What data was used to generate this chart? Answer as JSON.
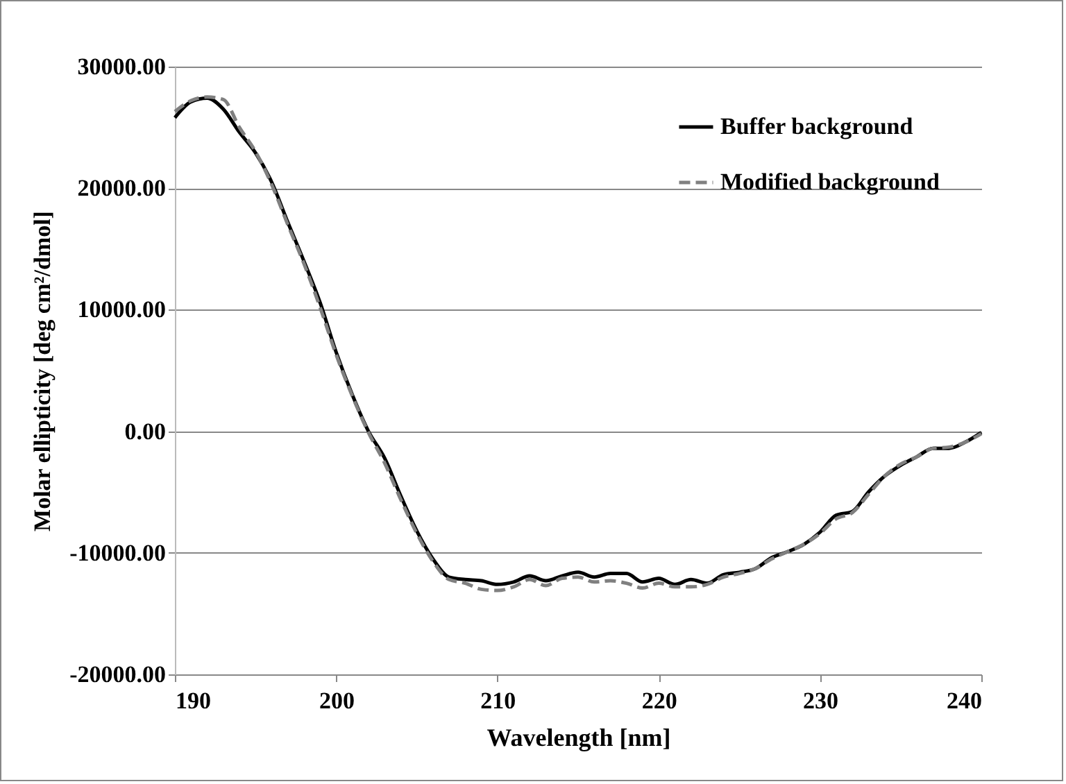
{
  "chart_data": {
    "type": "line",
    "xlabel": "Wavelength [nm]",
    "ylabel": "Molar ellipticity [deg cm²/dmol]",
    "x": [
      190,
      191,
      192,
      193,
      194,
      195,
      196,
      197,
      198,
      199,
      200,
      201,
      202,
      203,
      204,
      205,
      206,
      207,
      208,
      209,
      210,
      211,
      212,
      213,
      214,
      215,
      216,
      217,
      218,
      219,
      220,
      221,
      222,
      223,
      224,
      225,
      226,
      227,
      228,
      229,
      230,
      231,
      232,
      233,
      234,
      235,
      236,
      237,
      238,
      239,
      240
    ],
    "series": [
      {
        "name": "Buffer background",
        "color": "#000000",
        "line_style": "solid",
        "values": [
          25800,
          27100,
          27400,
          26500,
          24600,
          22900,
          20500,
          17200,
          14000,
          10600,
          6500,
          3000,
          0,
          -2200,
          -5300,
          -8200,
          -10500,
          -12000,
          -12200,
          -12300,
          -12600,
          -12400,
          -11900,
          -12300,
          -11900,
          -11600,
          -12000,
          -11700,
          -11700,
          -12400,
          -12100,
          -12600,
          -12200,
          -12500,
          -11800,
          -11600,
          -11300,
          -10400,
          -9900,
          -9300,
          -8300,
          -6900,
          -6600,
          -5000,
          -3700,
          -2800,
          -2100,
          -1400,
          -1400,
          -900,
          -100
        ]
      },
      {
        "name": "Modified background",
        "color": "#808080",
        "line_style": "dashed",
        "values": [
          26300,
          27200,
          27500,
          27300,
          25000,
          23000,
          20300,
          17000,
          13800,
          10200,
          6300,
          2900,
          -100,
          -2600,
          -5600,
          -8400,
          -10700,
          -12200,
          -12500,
          -13000,
          -13100,
          -12800,
          -12200,
          -12700,
          -12100,
          -12000,
          -12400,
          -12300,
          -12500,
          -12900,
          -12500,
          -12800,
          -12800,
          -12600,
          -12000,
          -11700,
          -11300,
          -10500,
          -9900,
          -9300,
          -8400,
          -7200,
          -6700,
          -5200,
          -3700,
          -2700,
          -2100,
          -1400,
          -1300,
          -900,
          -200
        ]
      }
    ],
    "xlim": [
      190,
      240
    ],
    "xticks": [
      190,
      200,
      210,
      220,
      230,
      240
    ],
    "ylim": [
      -20000,
      30000
    ],
    "yticks": [
      {
        "value": -20000,
        "label": "-20000.00"
      },
      {
        "value": -10000,
        "label": "-10000.00"
      },
      {
        "value": 0,
        "label": "0.00"
      },
      {
        "value": 10000,
        "label": "10000.00"
      },
      {
        "value": 20000,
        "label": "20000.00"
      },
      {
        "value": 30000,
        "label": "30000.00"
      }
    ],
    "grid": "y",
    "legend": "top right",
    "marker": "none"
  }
}
